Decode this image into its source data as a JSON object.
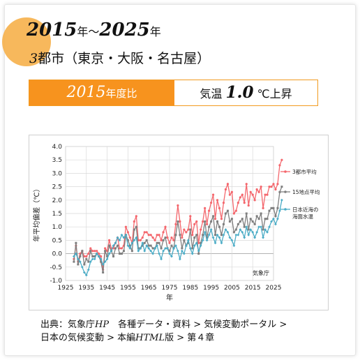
{
  "header": {
    "year_start": "2015",
    "year_sep": "年〜",
    "year_end": "2025",
    "year_suffix": "年",
    "cities_num": "3",
    "cities_text": "都市（東京・大阪・名古屋）"
  },
  "band": {
    "base_year": "2015",
    "base_suffix": "年度比",
    "label": "気温",
    "value": "1.0",
    "unit": "℃上昇"
  },
  "colors": {
    "accent": "#f7931e",
    "series1": "#f4676d",
    "series2": "#7f7f7f",
    "series3": "#4bacc6"
  },
  "chart_data": {
    "type": "line",
    "xlabel": "年",
    "ylabel": "年平均偏差（℃）",
    "xlim": [
      1925,
      2025
    ],
    "ylim": [
      -1.0,
      4.0
    ],
    "xticks": [
      "1925",
      "1935",
      "1945",
      "1955",
      "1965",
      "1975",
      "1985",
      "1995",
      "2005",
      "2015",
      "2025"
    ],
    "yticks": [
      "4.0",
      "3.5",
      "3.0",
      "2.5",
      "2.0",
      "1.5",
      "1.0",
      "0.5",
      "0.0",
      "-0.5",
      "-1.0"
    ],
    "annotation": "気象庁",
    "legend_position": "right",
    "x_start": 1929,
    "series": [
      {
        "name": "3都市平均",
        "values": [
          -0.2,
          0.3,
          -0.3,
          0.0,
          0.1,
          -0.1,
          -0.1,
          0.0,
          0.2,
          0.1,
          0.1,
          0.1,
          0.0,
          -0.1,
          -0.6,
          0.2,
          0.1,
          0.5,
          0.2,
          0.2,
          0.4,
          0.6,
          0.2,
          0.2,
          0.3,
          1.0,
          0.8,
          0.6,
          0.4,
          1.2,
          1.4,
          0.5,
          0.5,
          0.6,
          0.8,
          0.8,
          0.7,
          0.7,
          0.6,
          0.5,
          0.7,
          0.7,
          0.5,
          0.8,
          1.0,
          0.6,
          0.4,
          0.6,
          0.5,
          1.1,
          1.8,
          1.2,
          0.6,
          0.9,
          0.8,
          0.9,
          1.4,
          0.7,
          1.1,
          1.2,
          0.4,
          0.9,
          1.2,
          1.7,
          1.1,
          1.6,
          1.9,
          2.2,
          1.3,
          2.0,
          1.7,
          1.3,
          1.9,
          2.4,
          2.6,
          2.2,
          2.3,
          1.5,
          1.6,
          1.9,
          2.1,
          2.2,
          1.9,
          2.6,
          1.8,
          2.3,
          2.2,
          2.0,
          2.4,
          2.3,
          2.5,
          1.7,
          2.2,
          2.2,
          2.5,
          2.5,
          2.6,
          2.4,
          2.6,
          3.3,
          3.5
        ]
      },
      {
        "name": "15地点平均",
        "values": [
          -0.3,
          0.4,
          -0.4,
          -0.1,
          0.1,
          -0.4,
          -0.2,
          -0.3,
          0.1,
          -0.1,
          -0.1,
          0.0,
          -0.1,
          -0.3,
          -0.7,
          0.1,
          -0.1,
          0.3,
          0.1,
          -0.1,
          0.2,
          0.3,
          0.0,
          0.0,
          0.1,
          0.7,
          0.5,
          0.3,
          0.1,
          0.9,
          1.0,
          0.2,
          0.2,
          0.3,
          0.4,
          0.5,
          0.3,
          0.3,
          0.2,
          0.2,
          0.4,
          0.4,
          0.2,
          0.5,
          0.6,
          0.2,
          0.1,
          0.3,
          0.2,
          0.7,
          1.2,
          0.7,
          0.2,
          0.5,
          0.3,
          0.4,
          0.9,
          0.2,
          0.6,
          0.7,
          0.0,
          0.4,
          0.7,
          1.2,
          0.6,
          1.0,
          1.2,
          1.4,
          0.7,
          1.2,
          1.0,
          0.7,
          1.1,
          1.5,
          1.6,
          1.2,
          1.3,
          0.8,
          0.9,
          1.1,
          1.2,
          1.3,
          1.0,
          1.5,
          0.9,
          1.3,
          1.2,
          1.1,
          1.4,
          1.3,
          1.5,
          0.9,
          1.3,
          1.3,
          1.6,
          1.7,
          1.7,
          1.4,
          1.7,
          2.3,
          2.5
        ]
      },
      {
        "name": "日本近海の海面水温",
        "values": [
          -0.1,
          0.0,
          -0.2,
          -0.3,
          -0.5,
          -0.7,
          -0.8,
          -0.6,
          -0.3,
          -0.2,
          -0.2,
          0.0,
          -0.1,
          -0.2,
          -0.4,
          -0.3,
          -0.2,
          0.0,
          0.1,
          0.3,
          0.4,
          0.6,
          0.5,
          0.7,
          0.6,
          0.7,
          0.3,
          0.2,
          0.4,
          0.5,
          0.6,
          0.1,
          0.2,
          0.4,
          0.1,
          0.3,
          0.2,
          0.1,
          0.0,
          0.2,
          0.3,
          0.0,
          -0.2,
          0.1,
          0.2,
          0.2,
          0.0,
          -0.1,
          0.2,
          0.3,
          0.1,
          -0.2,
          0.1,
          0.0,
          0.3,
          0.5,
          0.2,
          0.0,
          0.3,
          0.4,
          0.1,
          0.3,
          0.5,
          0.8,
          0.5,
          0.7,
          0.9,
          0.6,
          0.4,
          0.7,
          0.6,
          0.4,
          0.7,
          0.9,
          0.8,
          0.6,
          0.5,
          0.3,
          0.7,
          0.7,
          0.9,
          0.8,
          0.6,
          1.0,
          0.7,
          0.9,
          0.8,
          0.6,
          0.8,
          1.0,
          1.0,
          0.6,
          0.9,
          0.8,
          1.0,
          1.2,
          1.3,
          1.1,
          1.3,
          1.6,
          2.0
        ]
      }
    ]
  },
  "footer": {
    "line1_a": "出典：気象庁",
    "line1_hp": "HP",
    "line1_b": "　各種データ・資料 > 気候変動ポータル >",
    "line2_a": "日本の気候変動 > 本編",
    "line2_html": "HTML",
    "line2_b": "版 > 第４章"
  }
}
